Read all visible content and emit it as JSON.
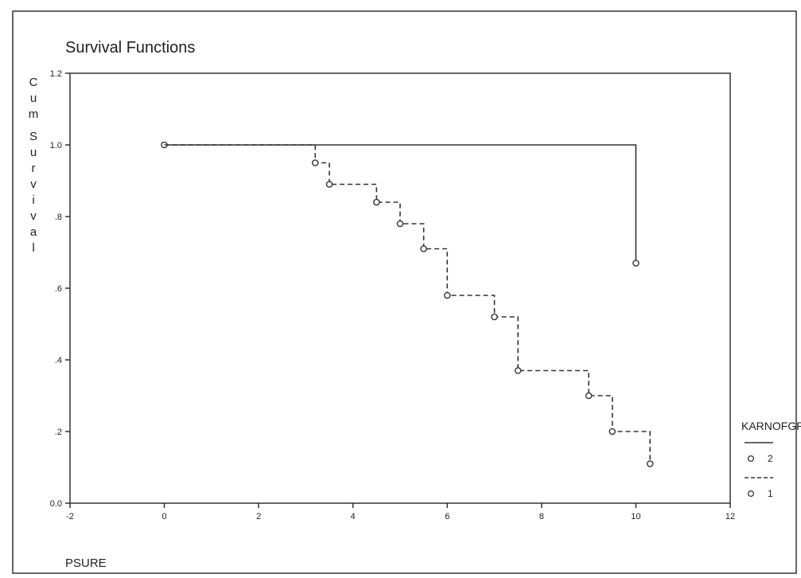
{
  "chart_data": {
    "type": "line",
    "title": "Survival Functions",
    "ylabel": "Cum Survival",
    "xlabel": "PSURE",
    "xlim": [
      -2,
      12
    ],
    "ylim": [
      0.0,
      1.2
    ],
    "x_ticks": [
      -2,
      0,
      2,
      4,
      6,
      8,
      10,
      12
    ],
    "x_tick_labels": [
      "-2",
      "0",
      "2",
      "4",
      "6",
      "8",
      "10",
      "12"
    ],
    "y_ticks": [
      0.0,
      0.2,
      0.4,
      0.6,
      0.8,
      1.0,
      1.2
    ],
    "y_tick_labels": [
      "0.0",
      ".2",
      ".4",
      ".6",
      ".8",
      "1.0",
      "1.2"
    ],
    "grid": false,
    "legend": {
      "title": "KARNOFGR",
      "position": "right",
      "entries": [
        {
          "label": "2",
          "series": 0
        },
        {
          "label": "1",
          "series": 1
        }
      ]
    },
    "series": [
      {
        "name": "2",
        "line_style": "solid",
        "step_x": [
          0,
          10
        ],
        "step_y": [
          1.0,
          0.67
        ],
        "censor_x": [
          0,
          10
        ],
        "censor_y": [
          1.0,
          0.67
        ]
      },
      {
        "name": "1",
        "line_style": "dashed",
        "step_x": [
          3.2,
          3.5,
          4.5,
          5.0,
          5.5,
          6.0,
          7.0,
          7.5,
          9.0,
          9.5,
          10.3
        ],
        "step_y": [
          0.95,
          0.89,
          0.84,
          0.78,
          0.71,
          0.58,
          0.52,
          0.37,
          0.3,
          0.2,
          0.11
        ],
        "censor_x": [
          3.2,
          3.5,
          4.5,
          5.0,
          5.5,
          6.0,
          7.0,
          7.5,
          9.0,
          9.5,
          10.3
        ],
        "censor_y": [
          0.95,
          0.89,
          0.84,
          0.78,
          0.71,
          0.58,
          0.52,
          0.37,
          0.3,
          0.2,
          0.11
        ]
      }
    ]
  }
}
